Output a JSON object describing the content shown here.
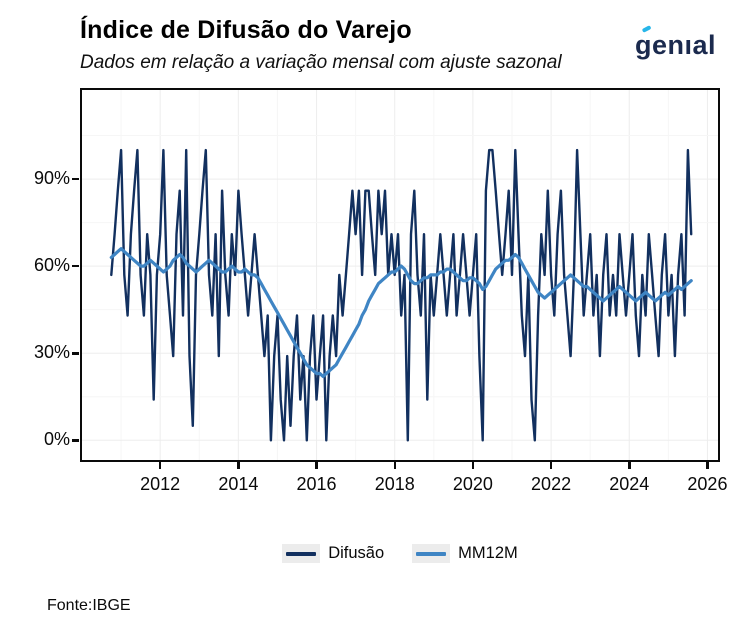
{
  "header": {
    "title": "Índice de Difusão do Varejo",
    "subtitle": "Dados em relação a variação mensal com ajuste sazonal",
    "logo_text": "genıal"
  },
  "footer": {
    "source": "Fonte:IBGE"
  },
  "colors": {
    "difusao": "#12305f",
    "mm12m": "#3f85c4",
    "logo_navy": "#1b2a4e",
    "logo_accent": "#27b6e9",
    "legend_key_bg": "#ececec",
    "grid_major": "#ededed",
    "grid_minor": "#f6f6f6",
    "panel_border": "#0a0a0a"
  },
  "chart_data": {
    "type": "line",
    "title": "Índice de Difusão do Varejo",
    "subtitle": "Dados em relação a variação mensal com ajuste sazonal",
    "xlabel": "",
    "ylabel": "",
    "x_range": [
      2010.0,
      2026.27
    ],
    "y_range": [
      -6.8,
      120.7
    ],
    "x_ticks": [
      2012,
      2014,
      2016,
      2018,
      2020,
      2022,
      2024,
      2026
    ],
    "x_tick_labels": [
      "2012",
      "2014",
      "2016",
      "2018",
      "2020",
      "2022",
      "2024",
      "2026"
    ],
    "y_ticks": [
      0,
      30,
      60,
      90
    ],
    "y_tick_labels": [
      "0%",
      "30%",
      "60%",
      "90%"
    ],
    "grid": {
      "major_x": [
        2012,
        2014,
        2016,
        2018,
        2020,
        2022,
        2024,
        2026
      ],
      "minor_x": [
        2011,
        2013,
        2015,
        2017,
        2019,
        2021,
        2023,
        2025
      ],
      "major_y": [
        0,
        30,
        60,
        90
      ],
      "minor_y": [
        15,
        45,
        75,
        105
      ]
    },
    "legend": [
      "Difusão",
      "MM12M"
    ],
    "legend_position": "bottom",
    "start_month": "2010-10",
    "start_year": 2010.75,
    "frequency": "monthly",
    "series": [
      {
        "name": "Difusão",
        "data_name": "difusao-line",
        "color": "#12305f",
        "width": 2.4,
        "values": [
          57,
          71,
          86,
          100,
          57,
          43,
          71,
          86,
          100,
          57,
          43,
          71,
          57,
          14,
          57,
          71,
          100,
          57,
          43,
          29,
          71,
          86,
          43,
          100,
          29,
          5,
          57,
          71,
          86,
          100,
          57,
          43,
          71,
          29,
          86,
          57,
          43,
          71,
          57,
          86,
          71,
          57,
          43,
          57,
          71,
          57,
          43,
          29,
          43,
          0,
          29,
          43,
          14,
          0,
          29,
          5,
          29,
          43,
          14,
          29,
          0,
          29,
          43,
          14,
          29,
          43,
          0,
          29,
          43,
          29,
          57,
          43,
          57,
          71,
          86,
          71,
          86,
          57,
          86,
          86,
          71,
          57,
          86,
          71,
          86,
          57,
          71,
          57,
          71,
          43,
          57,
          0,
          71,
          86,
          57,
          43,
          71,
          14,
          57,
          43,
          57,
          71,
          57,
          43,
          57,
          71,
          43,
          57,
          71,
          57,
          43,
          57,
          71,
          29,
          0,
          86,
          100,
          100,
          86,
          71,
          57,
          71,
          86,
          57,
          100,
          71,
          43,
          29,
          57,
          14,
          0,
          43,
          71,
          57,
          86,
          57,
          43,
          71,
          86,
          57,
          43,
          29,
          57,
          100,
          71,
          43,
          57,
          71,
          43,
          57,
          29,
          57,
          71,
          43,
          57,
          43,
          71,
          57,
          43,
          57,
          71,
          43,
          29,
          57,
          43,
          71,
          57,
          43,
          29,
          57,
          71,
          43,
          57,
          29,
          57,
          71,
          43,
          100,
          71
        ]
      },
      {
        "name": "MM12M",
        "data_name": "mm12m-line",
        "color": "#3f85c4",
        "width": 3.2,
        "values": [
          63,
          64,
          65,
          66,
          65,
          64,
          63,
          62,
          61,
          60,
          60,
          61,
          62,
          61,
          60,
          59,
          58,
          59,
          60,
          62,
          63,
          64,
          63,
          61,
          60,
          59,
          58,
          59,
          60,
          61,
          62,
          61,
          60,
          59,
          58,
          58,
          59,
          60,
          59,
          58,
          58,
          59,
          58,
          57,
          57,
          56,
          54,
          52,
          50,
          48,
          46,
          44,
          42,
          40,
          38,
          36,
          34,
          32,
          30,
          28,
          26,
          25,
          24,
          23,
          23,
          22,
          23,
          24,
          25,
          26,
          28,
          30,
          32,
          34,
          36,
          38,
          40,
          43,
          45,
          48,
          50,
          52,
          54,
          55,
          56,
          57,
          58,
          58,
          59,
          60,
          59,
          57,
          55,
          54,
          54,
          55,
          56,
          56,
          57,
          57,
          57,
          58,
          58,
          59,
          59,
          58,
          57,
          56,
          55,
          55,
          56,
          56,
          55,
          54,
          52,
          53,
          55,
          57,
          59,
          60,
          61,
          62,
          62,
          63,
          64,
          63,
          61,
          59,
          57,
          55,
          53,
          51,
          50,
          49,
          50,
          51,
          52,
          53,
          54,
          55,
          56,
          57,
          56,
          55,
          54,
          53,
          53,
          52,
          51,
          50,
          49,
          48,
          49,
          50,
          51,
          52,
          53,
          52,
          51,
          50,
          49,
          48,
          49,
          50,
          51,
          50,
          49,
          48,
          49,
          50,
          51,
          50,
          51,
          52,
          53,
          52,
          53,
          54,
          55
        ]
      }
    ]
  }
}
